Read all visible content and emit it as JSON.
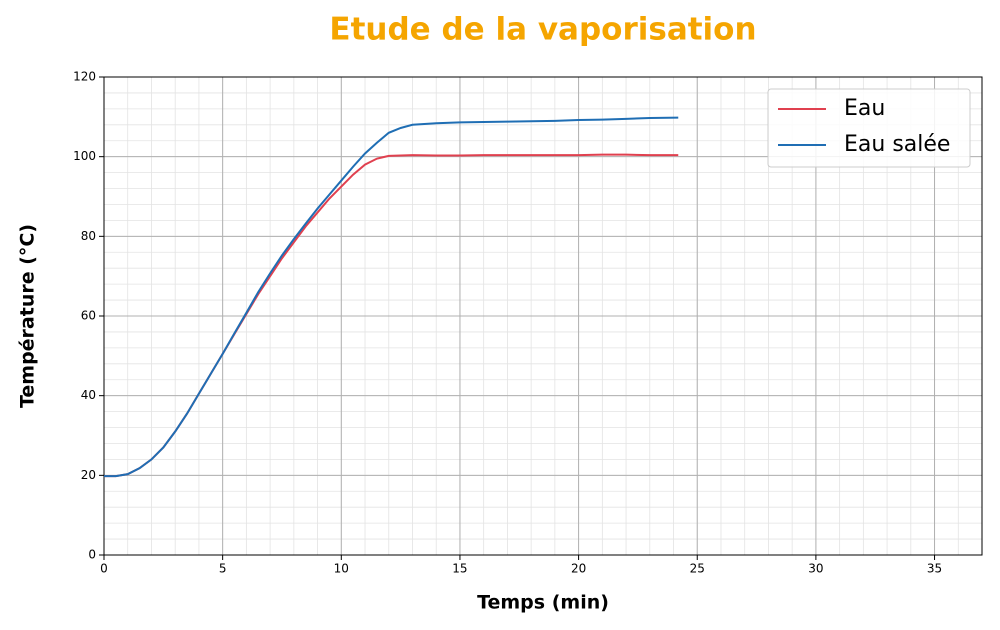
{
  "chart_data": {
    "type": "line",
    "title": "Etude de la vaporisation",
    "xlabel": "Temps (min)",
    "ylabel": "Température (°C)",
    "x": [
      0,
      0.5,
      1,
      1.5,
      2,
      2.5,
      3,
      3.5,
      4,
      4.5,
      5,
      5.5,
      6,
      6.5,
      7,
      7.5,
      8,
      8.5,
      9,
      9.5,
      10,
      10.5,
      11,
      11.5,
      12,
      12.5,
      13,
      14,
      15,
      16,
      17,
      18,
      19,
      20,
      21,
      22,
      23,
      24.2
    ],
    "series": [
      {
        "name": "Eau",
        "color": "#e0404f",
        "values": [
          19.8,
          19.8,
          20.3,
          21.8,
          24,
          27,
          31,
          35.5,
          40.5,
          45.5,
          50.5,
          55.5,
          60.5,
          65.5,
          70,
          74.5,
          78.5,
          82.5,
          86,
          89.5,
          92.5,
          95.5,
          98,
          99.5,
          100.2,
          100.3,
          100.4,
          100.3,
          100.3,
          100.4,
          100.4,
          100.4,
          100.4,
          100.4,
          100.5,
          100.5,
          100.4,
          100.4
        ]
      },
      {
        "name": "Eau salée",
        "color": "#1f6eb4",
        "values": [
          19.8,
          19.8,
          20.3,
          21.8,
          24,
          27,
          31,
          35.5,
          40.5,
          45.5,
          50.5,
          55.7,
          60.8,
          66,
          70.7,
          75.2,
          79.3,
          83.2,
          87,
          90.5,
          94,
          97.5,
          100.8,
          103.5,
          106,
          107.2,
          108,
          108.4,
          108.6,
          108.7,
          108.8,
          108.9,
          109,
          109.2,
          109.3,
          109.5,
          109.7,
          109.8
        ]
      }
    ],
    "xlim": [
      0,
      37
    ],
    "ylim": [
      0,
      120
    ],
    "xticks": [
      0,
      5,
      10,
      15,
      20,
      25,
      30,
      35
    ],
    "yticks": [
      0,
      20,
      40,
      60,
      80,
      100,
      120
    ],
    "xminor_step": 1,
    "yminor_step": 4,
    "grid": true,
    "legend": "upper right"
  }
}
